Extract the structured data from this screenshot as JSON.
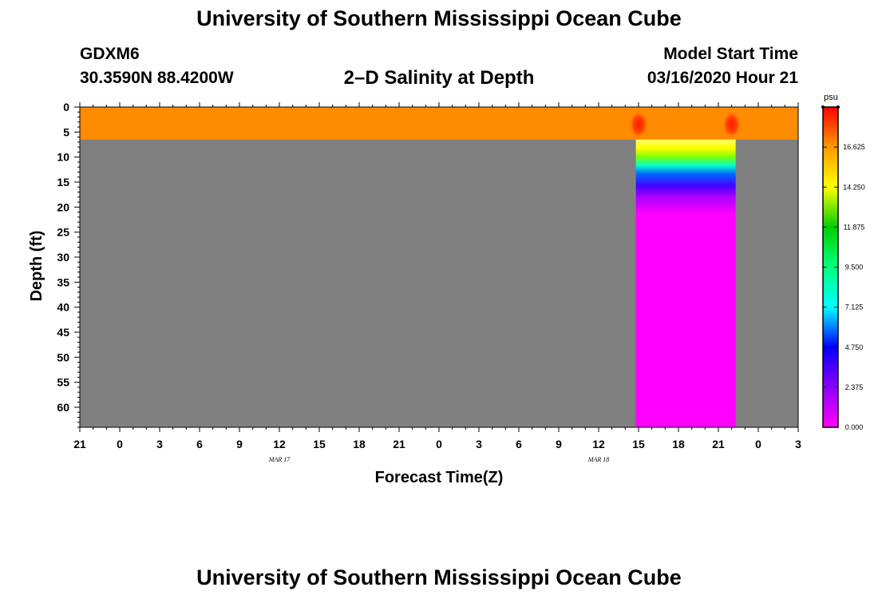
{
  "header": {
    "main_title": "University of Southern Mississippi Ocean Cube",
    "station": "GDXM6",
    "coordinates": "30.3590N 88.4200W",
    "plot_title": "2–D Salinity at Depth",
    "model_start_label": "Model Start Time",
    "model_start_value": "03/16/2020 Hour 21"
  },
  "footer": {
    "title": "University of Southern Mississippi Ocean Cube"
  },
  "colors": {
    "missing": "#808080",
    "surface": "#ff8c00",
    "frame": "#000000"
  },
  "chart_data": {
    "type": "heatmap",
    "title": "2–D Salinity at Depth",
    "xlabel": "Forecast Time(Z)",
    "ylabel": "Depth (ft)",
    "x_ticks": [
      "21",
      "0",
      "3",
      "6",
      "9",
      "12",
      "15",
      "18",
      "21",
      "0",
      "3",
      "6",
      "9",
      "12",
      "15",
      "18",
      "21",
      "0",
      "3"
    ],
    "x_range_hours": [
      0,
      54
    ],
    "date_labels": [
      {
        "text": "MAR 17",
        "hour": 15
      },
      {
        "text": "MAR 18",
        "hour": 39
      }
    ],
    "y_ticks": [
      0,
      5,
      10,
      15,
      20,
      25,
      30,
      35,
      40,
      45,
      50,
      55,
      60
    ],
    "y_range": [
      0,
      64
    ],
    "colorbar": {
      "unit": "psu",
      "min": 0,
      "max": 19,
      "tick_values": [
        0.0,
        2.375,
        4.75,
        7.125,
        9.5,
        11.875,
        14.25,
        16.625
      ],
      "tick_labels": [
        "0.000",
        "2.375",
        "4.750",
        "7.125",
        "9.500",
        "11.875",
        "14.250",
        "16.625"
      ]
    },
    "regions": [
      {
        "name": "surface-layer",
        "hour_start": 0,
        "hour_end": 54,
        "depth_top": 0,
        "depth_bottom": 6.5,
        "salinity": 15.5
      },
      {
        "name": "valid-column",
        "hour_start": 41.8,
        "hour_end": 49.3,
        "depth_top": 6.5,
        "depth_bottom": 64,
        "salinity_surface": 15.2,
        "salinity_deep": 0.0
      },
      {
        "name": "surface-hotspot-1",
        "hour": 42,
        "depth": 3.5,
        "salinity": 18.5
      },
      {
        "name": "surface-hotspot-2",
        "hour": 49,
        "depth": 3.5,
        "salinity": 18.8
      }
    ]
  }
}
